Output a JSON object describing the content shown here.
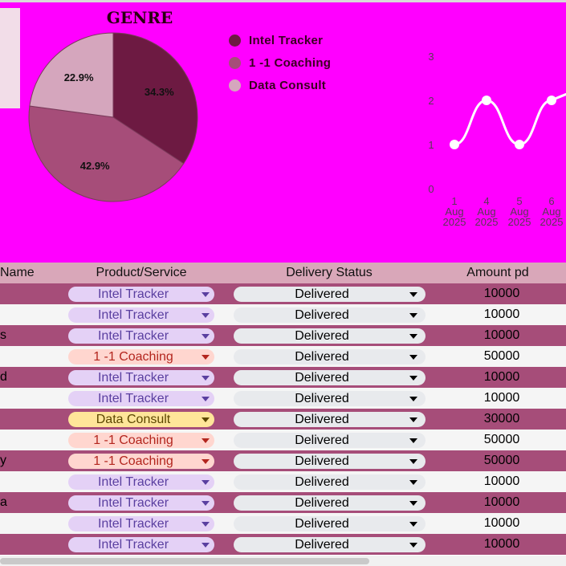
{
  "chart_data": [
    {
      "type": "pie",
      "title": "GENRE",
      "legend_position": "right",
      "slices": [
        {
          "label": "Intel Tracker",
          "value": 34.3,
          "value_label": "34.3%",
          "color": "#6d1a42"
        },
        {
          "label": "1 -1 Coaching",
          "value": 42.9,
          "value_label": "42.9%",
          "color": "#a64d79"
        },
        {
          "label": "Data Consult",
          "value": 22.9,
          "value_label": "22.9%",
          "color": "#d5a6bd"
        }
      ]
    },
    {
      "type": "line",
      "ylim": [
        0,
        3
      ],
      "yticks": [
        "0",
        "1",
        "2",
        "3"
      ],
      "categories": [
        [
          "1",
          "Aug",
          "2025"
        ],
        [
          "4",
          "Aug",
          "2025"
        ],
        [
          "5",
          "Aug",
          "2025"
        ],
        [
          "6",
          "Aug",
          "2025"
        ]
      ],
      "series": [
        {
          "values": [
            1,
            2,
            1,
            2
          ],
          "color": "#ffffff"
        }
      ]
    }
  ],
  "table": {
    "headers": {
      "name": "Name",
      "product": "Product/Service",
      "status": "Delivery Status",
      "amount": "Amount pd"
    },
    "rows": [
      {
        "name": "",
        "product": "Intel Tracker",
        "status": "Delivered",
        "amount": "10000"
      },
      {
        "name": "",
        "product": "Intel Tracker",
        "status": "Delivered",
        "amount": "10000"
      },
      {
        "name": "s",
        "product": "Intel Tracker",
        "status": "Delivered",
        "amount": "10000"
      },
      {
        "name": "",
        "product": "1 -1 Coaching",
        "status": "Delivered",
        "amount": "50000"
      },
      {
        "name": "d",
        "product": "Intel Tracker",
        "status": "Delivered",
        "amount": "10000"
      },
      {
        "name": "",
        "product": "Intel Tracker",
        "status": "Delivered",
        "amount": "10000"
      },
      {
        "name": "",
        "product": "Data Consult",
        "status": "Delivered",
        "amount": "30000"
      },
      {
        "name": "",
        "product": "1 -1 Coaching",
        "status": "Delivered",
        "amount": "50000"
      },
      {
        "name": "y",
        "product": "1 -1 Coaching",
        "status": "Delivered",
        "amount": "50000"
      },
      {
        "name": "",
        "product": "Intel Tracker",
        "status": "Delivered",
        "amount": "10000"
      },
      {
        "name": "a",
        "product": "Intel Tracker",
        "status": "Delivered",
        "amount": "10000"
      },
      {
        "name": "",
        "product": "Intel Tracker",
        "status": "Delivered",
        "amount": "10000"
      },
      {
        "name": "",
        "product": "Intel Tracker",
        "status": "Delivered",
        "amount": "10000"
      }
    ]
  },
  "chip_styles": {
    "Intel Tracker": {
      "bg": "#e4d1f6",
      "fg": "#5a3fa0"
    },
    "1 -1 Coaching": {
      "bg": "#ffd6cf",
      "fg": "#b3261e"
    },
    "Data Consult": {
      "bg": "#ffe599",
      "fg": "#5c4700"
    }
  },
  "colors": {
    "dashboard_bg": "#ff00ff",
    "row_dark": "#a64d79",
    "row_light": "#f5f5f5",
    "header_bg": "#d9a7b9"
  }
}
